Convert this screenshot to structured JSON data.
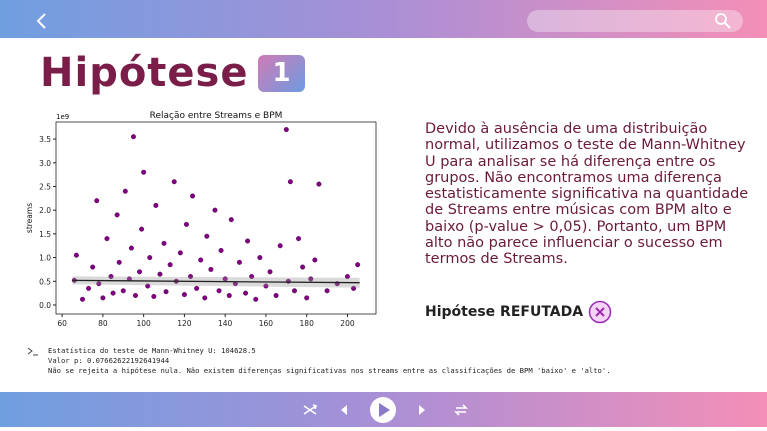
{
  "page": {
    "title": "Hipótese",
    "badge": "1",
    "description": "Devido à ausência de uma distribuição normal, utilizamos o teste de Mann-Whitney U para analisar se há diferença entre os grupos. Não encontramos uma diferença estatisticamente significativa na quantidade de Streams entre músicas com BPM alto e baixo (p-value > 0,05). Portanto, um BPM alto não parece influenciar o sucesso em termos de Streams.",
    "conclusion": "Hipótese REFUTADA",
    "console": [
      "Estatística do teste de Mann-Whitney U: 104628.5",
      "Valor p: 0.07662622192641944",
      "Não se rejeita a hipótese nula. Não existem diferenças significativas nos streams entre as classificações de BPM 'baixo' e 'alto'."
    ]
  },
  "chart_data": {
    "type": "scatter",
    "title": "Relação entre Streams e BPM",
    "y_label": "streams",
    "y_scale_label": "1e9",
    "color": "#800080",
    "x": [
      66,
      67,
      70,
      73,
      75,
      77,
      78,
      80,
      82,
      84,
      85,
      87,
      88,
      90,
      91,
      93,
      94,
      95,
      96,
      98,
      99,
      100,
      102,
      103,
      105,
      106,
      108,
      110,
      111,
      113,
      115,
      116,
      118,
      120,
      121,
      123,
      124,
      126,
      128,
      130,
      131,
      133,
      135,
      137,
      138,
      140,
      142,
      143,
      145,
      147,
      150,
      151,
      153,
      155,
      157,
      160,
      162,
      165,
      167,
      170,
      171,
      172,
      174,
      176,
      178,
      180,
      182,
      184,
      186,
      190,
      195,
      200,
      203,
      205
    ],
    "values": [
      0.52,
      1.05,
      0.12,
      0.35,
      0.8,
      2.2,
      0.45,
      0.15,
      1.4,
      0.6,
      0.25,
      1.9,
      0.9,
      0.3,
      2.4,
      0.55,
      1.2,
      3.55,
      0.2,
      0.7,
      1.6,
      2.8,
      0.4,
      1.0,
      0.18,
      2.1,
      0.65,
      1.3,
      0.28,
      0.85,
      2.6,
      0.5,
      1.1,
      0.22,
      1.7,
      0.6,
      2.3,
      0.35,
      0.95,
      0.15,
      1.45,
      0.75,
      2.0,
      0.3,
      1.15,
      0.55,
      0.2,
      1.8,
      0.45,
      0.9,
      0.25,
      1.35,
      0.6,
      0.12,
      1.0,
      0.4,
      0.7,
      0.2,
      1.25,
      3.7,
      0.5,
      2.6,
      0.3,
      1.4,
      0.8,
      0.15,
      0.55,
      0.95,
      2.55,
      0.3,
      0.45,
      0.6,
      0.35,
      0.85
    ],
    "fit": {
      "x": [
        65,
        206
      ],
      "y": [
        0.52,
        0.47
      ]
    },
    "xlim": [
      57,
      214
    ],
    "ylim": [
      -0.19,
      3.86
    ],
    "xticks": [
      60,
      80,
      100,
      120,
      140,
      160,
      180,
      200
    ],
    "yticks": [
      {
        "value": 0,
        "label": "0.0"
      },
      0.5,
      {
        "value": 1,
        "label": "1.0"
      },
      1.5,
      {
        "value": 2,
        "label": "2.0"
      },
      2.5,
      {
        "value": 3,
        "label": "3.0"
      },
      3.5
    ]
  }
}
